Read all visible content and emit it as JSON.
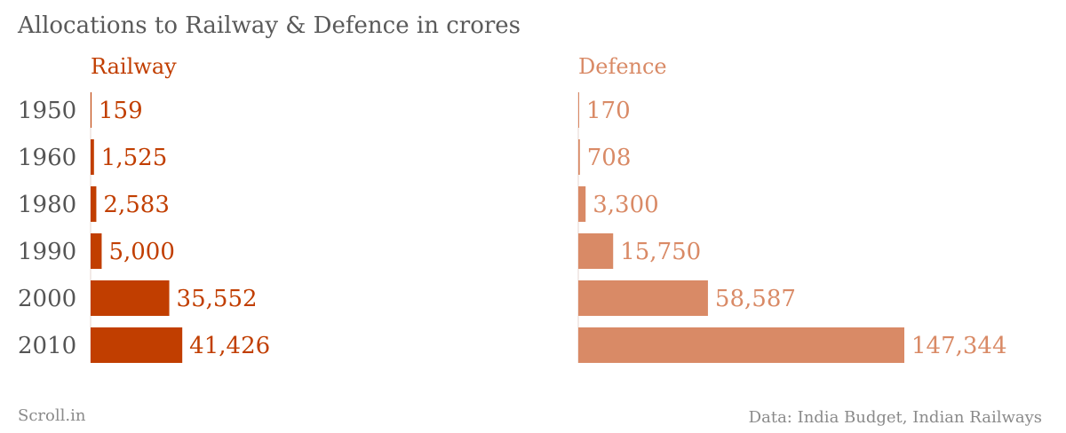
{
  "title": "Allocations to Railway & Defence in crores",
  "source": "Data: India Budget, Indian Railways",
  "brand": "Scroll.in",
  "chart_data": {
    "type": "bar",
    "orientation": "horizontal",
    "categories": [
      "1950",
      "1960",
      "1980",
      "1990",
      "2000",
      "2010"
    ],
    "series": [
      {
        "name": "Railway",
        "values": [
          159,
          1525,
          2583,
          5000,
          35552,
          41426
        ],
        "labels": [
          "159",
          "1,525",
          "2,583",
          "5,000",
          "35,552",
          "41,426"
        ],
        "color": "#c13e00"
      },
      {
        "name": "Defence",
        "values": [
          170,
          708,
          3300,
          15750,
          58587,
          147344
        ],
        "labels": [
          "170",
          "708",
          "3,300",
          "15,750",
          "58,587",
          "147,344"
        ],
        "color": "#d98a66"
      }
    ],
    "xlim": [
      0,
      147344
    ],
    "grid": false,
    "legend": "none"
  }
}
